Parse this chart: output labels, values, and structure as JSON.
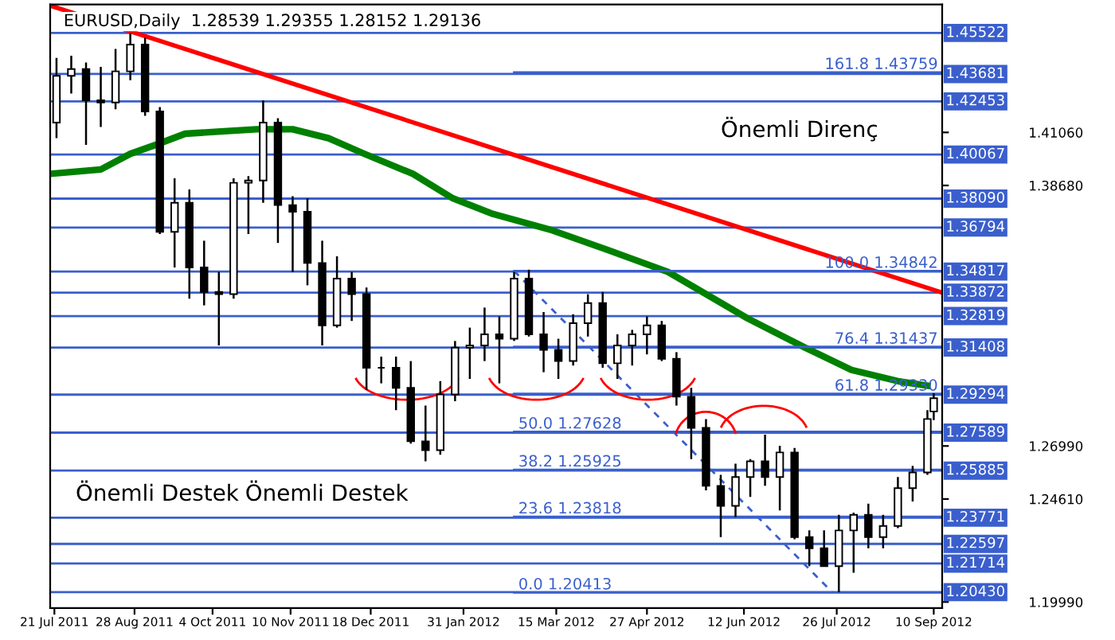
{
  "chart_data": {
    "type": "candlestick",
    "title": "EURUSD,Daily  1.28539 1.29355 1.28152 1.29136",
    "x": [
      "2011-07-22",
      "2011-07-29",
      "2011-08-05",
      "2011-08-12",
      "2011-08-19",
      "2011-08-26",
      "2011-09-02",
      "2011-09-09",
      "2011-09-16",
      "2011-09-23",
      "2011-09-30",
      "2011-10-07",
      "2011-10-14",
      "2011-10-21",
      "2011-10-28",
      "2011-11-04",
      "2011-11-11",
      "2011-11-18",
      "2011-11-25",
      "2011-12-02",
      "2011-12-09",
      "2011-12-16",
      "2011-12-23",
      "2011-12-30",
      "2012-01-06",
      "2012-01-13",
      "2012-01-20",
      "2012-01-27",
      "2012-02-03",
      "2012-02-10",
      "2012-02-17",
      "2012-02-24",
      "2012-03-02",
      "2012-03-09",
      "2012-03-16",
      "2012-03-23",
      "2012-03-30",
      "2012-04-06",
      "2012-04-13",
      "2012-04-20",
      "2012-04-27",
      "2012-05-04",
      "2012-05-11",
      "2012-05-18",
      "2012-05-25",
      "2012-06-01",
      "2012-06-08",
      "2012-06-15",
      "2012-06-22",
      "2012-06-29",
      "2012-07-06",
      "2012-07-13",
      "2012-07-20",
      "2012-07-27",
      "2012-08-03",
      "2012-08-10",
      "2012-08-17",
      "2012-08-24",
      "2012-08-31",
      "2012-09-07",
      "2012-09-10"
    ],
    "ohlc": [
      [
        1.415,
        1.444,
        1.408,
        1.436
      ],
      [
        1.436,
        1.445,
        1.428,
        1.439
      ],
      [
        1.439,
        1.442,
        1.405,
        1.425
      ],
      [
        1.425,
        1.44,
        1.413,
        1.424
      ],
      [
        1.424,
        1.448,
        1.421,
        1.438
      ],
      [
        1.438,
        1.455,
        1.434,
        1.45
      ],
      [
        1.45,
        1.453,
        1.418,
        1.42
      ],
      [
        1.42,
        1.422,
        1.365,
        1.366
      ],
      [
        1.366,
        1.39,
        1.35,
        1.379
      ],
      [
        1.379,
        1.385,
        1.336,
        1.35
      ],
      [
        1.35,
        1.362,
        1.333,
        1.339
      ],
      [
        1.339,
        1.348,
        1.315,
        1.338
      ],
      [
        1.338,
        1.39,
        1.336,
        1.388
      ],
      [
        1.388,
        1.391,
        1.365,
        1.389
      ],
      [
        1.389,
        1.425,
        1.379,
        1.415
      ],
      [
        1.415,
        1.417,
        1.361,
        1.378
      ],
      [
        1.378,
        1.382,
        1.348,
        1.375
      ],
      [
        1.375,
        1.381,
        1.342,
        1.352
      ],
      [
        1.352,
        1.362,
        1.315,
        1.324
      ],
      [
        1.324,
        1.355,
        1.323,
        1.345
      ],
      [
        1.345,
        1.348,
        1.326,
        1.338
      ],
      [
        1.338,
        1.341,
        1.295,
        1.305
      ],
      [
        1.305,
        1.31,
        1.298,
        1.305
      ],
      [
        1.305,
        1.31,
        1.286,
        1.296
      ],
      [
        1.296,
        1.308,
        1.271,
        1.272
      ],
      [
        1.272,
        1.288,
        1.263,
        1.268
      ],
      [
        1.268,
        1.299,
        1.266,
        1.293
      ],
      [
        1.293,
        1.317,
        1.29,
        1.314
      ],
      [
        1.314,
        1.323,
        1.3,
        1.315
      ],
      [
        1.315,
        1.332,
        1.308,
        1.32
      ],
      [
        1.32,
        1.328,
        1.298,
        1.318
      ],
      [
        1.318,
        1.348,
        1.317,
        1.345
      ],
      [
        1.345,
        1.349,
        1.319,
        1.32
      ],
      [
        1.32,
        1.33,
        1.303,
        1.313
      ],
      [
        1.313,
        1.318,
        1.3,
        1.308
      ],
      [
        1.308,
        1.329,
        1.306,
        1.325
      ],
      [
        1.325,
        1.338,
        1.319,
        1.334
      ],
      [
        1.334,
        1.339,
        1.305,
        1.307
      ],
      [
        1.307,
        1.32,
        1.3,
        1.315
      ],
      [
        1.315,
        1.322,
        1.306,
        1.32
      ],
      [
        1.32,
        1.328,
        1.311,
        1.324
      ],
      [
        1.324,
        1.326,
        1.308,
        1.309
      ],
      [
        1.309,
        1.312,
        1.288,
        1.292
      ],
      [
        1.292,
        1.296,
        1.264,
        1.278
      ],
      [
        1.278,
        1.282,
        1.25,
        1.252
      ],
      [
        1.252,
        1.257,
        1.229,
        1.243
      ],
      [
        1.243,
        1.262,
        1.238,
        1.256
      ],
      [
        1.256,
        1.264,
        1.247,
        1.263
      ],
      [
        1.263,
        1.275,
        1.252,
        1.256
      ],
      [
        1.256,
        1.27,
        1.241,
        1.267
      ],
      [
        1.267,
        1.269,
        1.228,
        1.229
      ],
      [
        1.229,
        1.232,
        1.216,
        1.224
      ],
      [
        1.224,
        1.232,
        1.216,
        1.216
      ],
      [
        1.216,
        1.239,
        1.2043,
        1.232
      ],
      [
        1.232,
        1.24,
        1.213,
        1.239
      ],
      [
        1.239,
        1.244,
        1.224,
        1.229
      ],
      [
        1.229,
        1.239,
        1.224,
        1.234
      ],
      [
        1.234,
        1.256,
        1.233,
        1.251
      ],
      [
        1.251,
        1.261,
        1.245,
        1.258
      ],
      [
        1.258,
        1.286,
        1.257,
        1.282
      ],
      [
        1.28539,
        1.29355,
        1.28152,
        1.29136
      ]
    ],
    "series": [
      {
        "type": "line",
        "color": "#ff0000",
        "x": [
          "2011-07-19",
          "2012-09-14"
        ],
        "values": [
          1.4675,
          1.3387
        ]
      },
      {
        "type": "line",
        "color": "#008000",
        "x": [
          "2011-07-19",
          "2011-08-12",
          "2011-08-26",
          "2011-09-07",
          "2011-09-21",
          "2011-10-08",
          "2011-10-25",
          "2011-11-11",
          "2011-11-28",
          "2011-12-15",
          "2012-01-07",
          "2012-01-26",
          "2012-02-14",
          "2012-03-12",
          "2012-04-08",
          "2012-05-07",
          "2012-06-14",
          "2012-07-11",
          "2012-08-02",
          "2012-08-24",
          "2012-09-07"
        ],
        "values": [
          1.392,
          1.394,
          1.401,
          1.405,
          1.41,
          1.411,
          1.412,
          1.412,
          1.408,
          1.401,
          1.392,
          1.381,
          1.374,
          1.367,
          1.358,
          1.348,
          1.327,
          1.314,
          1.304,
          1.299,
          1.297
        ]
      },
      {
        "type": "line",
        "color": "#3a5fcd",
        "line_style": "dashed",
        "x": [
          "2012-02-24",
          "2012-07-24"
        ],
        "values": [
          1.34842,
          1.20413
        ]
      },
      {
        "type": "line",
        "color": "#3a5fcd",
        "name": "161.8 1.43759",
        "x": [
          "2012-02-24",
          "2012-09-14"
        ],
        "values": [
          1.43759,
          1.43759
        ]
      },
      {
        "type": "line",
        "color": "#3a5fcd",
        "name": "100.0 1.34842",
        "x": [
          "2012-02-24",
          "2012-09-14"
        ],
        "values": [
          1.34842,
          1.34842
        ]
      },
      {
        "type": "line",
        "color": "#3a5fcd",
        "name": "76.4 1.31437",
        "x": [
          "2012-02-24",
          "2012-09-14"
        ],
        "values": [
          1.31437,
          1.31437
        ]
      },
      {
        "type": "line",
        "color": "#3a5fcd",
        "name": "61.8 1.29330",
        "x": [
          "2012-02-24",
          "2012-09-14"
        ],
        "values": [
          1.2933,
          1.2933
        ]
      },
      {
        "type": "line",
        "color": "#3a5fcd",
        "name": "50.0 1.27628",
        "x": [
          "2012-02-24",
          "2012-09-14"
        ],
        "values": [
          1.27628,
          1.27628
        ]
      },
      {
        "type": "line",
        "color": "#3a5fcd",
        "name": "38.2 1.25925",
        "x": [
          "2012-02-24",
          "2012-09-14"
        ],
        "values": [
          1.25925,
          1.25925
        ]
      },
      {
        "type": "line",
        "color": "#3a5fcd",
        "name": "23.6 1.23818",
        "x": [
          "2012-02-24",
          "2012-09-14"
        ],
        "values": [
          1.23818,
          1.23818
        ]
      },
      {
        "type": "line",
        "color": "#3a5fcd",
        "name": "0.0 1.20413",
        "x": [
          "2012-02-24",
          "2012-09-14"
        ],
        "values": [
          1.20413,
          1.20413
        ]
      }
    ],
    "ref_lines": [
      {
        "axis": "y",
        "value": 1.45522,
        "label": "1.45522",
        "color": "#3a5fcd"
      },
      {
        "axis": "y",
        "value": 1.43681,
        "label": "1.43681",
        "color": "#3a5fcd"
      },
      {
        "axis": "y",
        "value": 1.42453,
        "label": "1.42453",
        "color": "#3a5fcd"
      },
      {
        "axis": "y",
        "value": 1.40067,
        "label": "1.40067",
        "color": "#3a5fcd"
      },
      {
        "axis": "y",
        "value": 1.3809,
        "label": "1.38090",
        "color": "#3a5fcd"
      },
      {
        "axis": "y",
        "value": 1.36794,
        "label": "1.36794",
        "color": "#3a5fcd"
      },
      {
        "axis": "y",
        "value": 1.34817,
        "label": "1.34817",
        "color": "#3a5fcd"
      },
      {
        "axis": "y",
        "value": 1.33872,
        "label": "1.33872",
        "color": "#3a5fcd"
      },
      {
        "axis": "y",
        "value": 1.32819,
        "label": "1.32819",
        "color": "#3a5fcd"
      },
      {
        "axis": "y",
        "value": 1.31408,
        "label": "1.31408",
        "color": "#3a5fcd"
      },
      {
        "axis": "y",
        "value": 1.29294,
        "label": "1.29294",
        "color": "#3a5fcd"
      },
      {
        "axis": "y",
        "value": 1.27589,
        "label": "1.27589",
        "color": "#3a5fcd"
      },
      {
        "axis": "y",
        "value": 1.25885,
        "label": "1.25885",
        "color": "#3a5fcd"
      },
      {
        "axis": "y",
        "value": 1.23771,
        "label": "1.23771",
        "color": "#3a5fcd"
      },
      {
        "axis": "y",
        "value": 1.22597,
        "label": "1.22597",
        "color": "#3a5fcd"
      },
      {
        "axis": "y",
        "value": 1.21714,
        "label": "1.21714",
        "color": "#3a5fcd"
      },
      {
        "axis": "y",
        "value": 1.2043,
        "label": "1.20430",
        "color": "#3a5fcd"
      }
    ],
    "annotations": [
      "Önemli Destek",
      "Önemli Destek",
      "Önemli Direnç"
    ],
    "xlim": [
      "2011-07-19",
      "2012-09-14"
    ],
    "ylim": [
      1.1972,
      1.468
    ],
    "xticks": [
      {
        "value": "2011-07-21",
        "label": "21 Jul 2011"
      },
      {
        "value": "2011-08-28",
        "label": "28 Aug 2011"
      },
      {
        "value": "2011-10-04",
        "label": "4 Oct 2011"
      },
      {
        "value": "2011-11-10",
        "label": "10 Nov 2011"
      },
      {
        "value": "2011-12-18",
        "label": "18 Dec 2011"
      },
      {
        "value": "2012-01-31",
        "label": "31 Jan 2012"
      },
      {
        "value": "2012-03-15",
        "label": "15 Mar 2012"
      },
      {
        "value": "2012-04-27",
        "label": "27 Apr 2012"
      },
      {
        "value": "2012-06-12",
        "label": "12 Jun 2012"
      },
      {
        "value": "2012-07-26",
        "label": "26 Jul 2012"
      },
      {
        "value": "2012-09-10",
        "label": "10 Sep 2012"
      }
    ],
    "yticks": [
      {
        "value": 1.4106,
        "label": "1.41060"
      },
      {
        "value": 1.3868,
        "label": "1.38680"
      },
      {
        "value": 1.2699,
        "label": "1.26990"
      },
      {
        "value": 1.2461,
        "label": "1.24610"
      },
      {
        "value": 1.1999,
        "label": "1.19990"
      }
    ],
    "grid": false,
    "legend": false
  }
}
